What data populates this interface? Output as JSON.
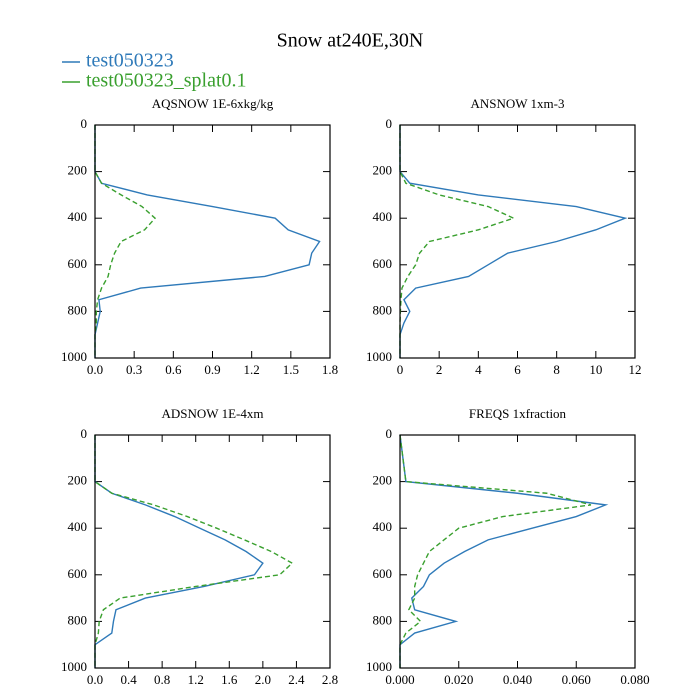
{
  "title": "Snow at240E,30N",
  "series": [
    {
      "name": "test050323",
      "color": "#2f7ab9",
      "dashed": false
    },
    {
      "name": "test050323_splat0.1",
      "color": "#3aa02f",
      "dashed": true
    }
  ],
  "chart_data": [
    {
      "type": "line",
      "title": "AQSNOW  1E-6xkg/kg",
      "y_inverted": true,
      "y": [
        0,
        200,
        250,
        300,
        350,
        400,
        450,
        500,
        550,
        600,
        650,
        700,
        750,
        800,
        850,
        900,
        1000
      ],
      "xlim": [
        0,
        1.8
      ],
      "xticks": [
        {
          "value": 0,
          "label": "0.0"
        },
        0.3,
        0.6,
        0.9,
        1.2,
        1.5,
        1.8
      ],
      "ylim": [
        0,
        1000
      ],
      "yticks": [
        0,
        200,
        400,
        600,
        800,
        1000
      ],
      "series": [
        {
          "values": [
            0,
            0,
            0.05,
            0.4,
            0.9,
            1.38,
            1.48,
            1.72,
            1.66,
            1.64,
            1.3,
            0.35,
            0.03,
            0.04,
            0.02,
            0,
            0
          ]
        },
        {
          "values": [
            0,
            0,
            0.05,
            0.2,
            0.36,
            0.46,
            0.38,
            0.2,
            0.15,
            0.12,
            0.1,
            0.05,
            0.02,
            0.01,
            0.01,
            0,
            0
          ]
        }
      ]
    },
    {
      "type": "line",
      "title": "ANSNOW  1xm-3",
      "y_inverted": true,
      "y": [
        0,
        200,
        250,
        300,
        350,
        400,
        450,
        500,
        550,
        600,
        650,
        700,
        750,
        800,
        850,
        900,
        1000
      ],
      "xlim": [
        0,
        12
      ],
      "xticks": [
        0,
        2,
        4,
        6,
        8,
        10,
        12
      ],
      "ylim": [
        0,
        1000
      ],
      "yticks": [
        0,
        200,
        400,
        600,
        800,
        1000
      ],
      "series": [
        {
          "values": [
            0,
            0,
            0.5,
            4,
            9,
            11.5,
            10,
            8,
            5.5,
            4.5,
            3.5,
            0.8,
            0.2,
            0.5,
            0.2,
            0,
            0
          ]
        },
        {
          "values": [
            0,
            0,
            0.3,
            2,
            4.5,
            5.8,
            4,
            1.5,
            1,
            0.8,
            0.4,
            0.1,
            0.05,
            0.02,
            0,
            0,
            0
          ]
        }
      ]
    },
    {
      "type": "line",
      "title": "ADSNOW  1E-4xm",
      "y_inverted": true,
      "y": [
        0,
        200,
        250,
        300,
        350,
        400,
        450,
        500,
        550,
        600,
        650,
        700,
        750,
        800,
        850,
        900,
        1000
      ],
      "xlim": [
        0,
        2.8
      ],
      "xticks": [
        {
          "value": 0,
          "label": "0.0"
        },
        0.4,
        0.8,
        1.2,
        1.6,
        {
          "value": 2,
          "label": "2.0"
        },
        2.4,
        2.8
      ],
      "ylim": [
        0,
        1000
      ],
      "yticks": [
        0,
        200,
        400,
        600,
        800,
        1000
      ],
      "series": [
        {
          "values": [
            0,
            0,
            0.2,
            0.6,
            0.95,
            1.25,
            1.55,
            1.8,
            2.0,
            1.9,
            1.3,
            0.6,
            0.25,
            0.22,
            0.2,
            0,
            0
          ]
        },
        {
          "values": [
            0,
            0,
            0.2,
            0.7,
            1.1,
            1.45,
            1.78,
            2.1,
            2.35,
            2.2,
            1.2,
            0.3,
            0.1,
            0.05,
            0.04,
            0,
            0
          ]
        }
      ]
    },
    {
      "type": "line",
      "title": "FREQS  1xfraction",
      "y_inverted": true,
      "y": [
        0,
        200,
        250,
        300,
        350,
        400,
        450,
        500,
        550,
        600,
        650,
        700,
        750,
        800,
        850,
        900,
        1000
      ],
      "xlim": [
        0,
        0.08
      ],
      "xticks": [
        {
          "value": 0,
          "label": "0.000"
        },
        {
          "value": 0.02,
          "label": "0.020"
        },
        {
          "value": 0.04,
          "label": "0.040"
        },
        {
          "value": 0.06,
          "label": "0.060"
        },
        {
          "value": 0.08,
          "label": "0.080"
        }
      ],
      "ylim": [
        0,
        1000
      ],
      "yticks": [
        0,
        200,
        400,
        600,
        800,
        1000
      ],
      "series": [
        {
          "values": [
            0,
            0.002,
            0.04,
            0.07,
            0.06,
            0.045,
            0.03,
            0.022,
            0.015,
            0.01,
            0.008,
            0.004,
            0.005,
            0.019,
            0.005,
            0,
            0
          ]
        },
        {
          "values": [
            0,
            0.002,
            0.05,
            0.065,
            0.035,
            0.02,
            0.015,
            0.01,
            0.008,
            0.006,
            0.005,
            0.005,
            0.003,
            0.007,
            0.002,
            0,
            0
          ]
        }
      ]
    }
  ]
}
